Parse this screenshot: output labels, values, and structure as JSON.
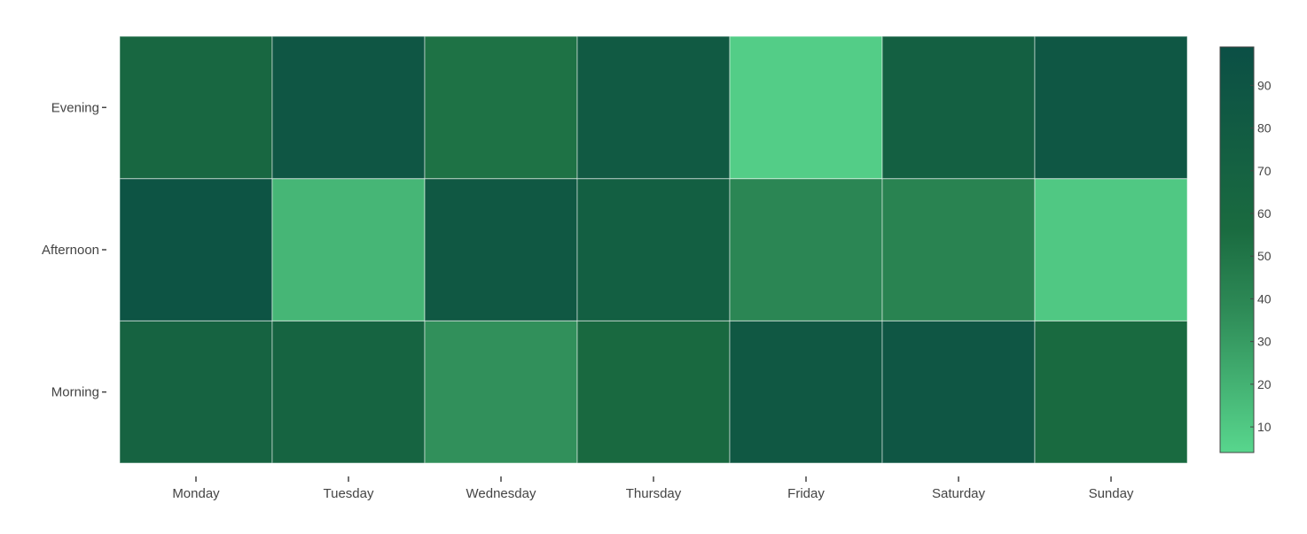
{
  "chart_data": {
    "type": "heatmap",
    "title": "",
    "xlabel": "",
    "ylabel": "",
    "x_categories": [
      "Monday",
      "Tuesday",
      "Wednesday",
      "Thursday",
      "Friday",
      "Saturday",
      "Sunday"
    ],
    "y_categories": [
      "Morning",
      "Afternoon",
      "Evening"
    ],
    "z": [
      [
        68,
        67,
        35,
        60,
        85,
        89,
        58
      ],
      [
        92,
        18,
        86,
        75,
        40,
        42,
        10
      ],
      [
        63,
        88,
        52,
        82,
        8,
        73,
        87
      ]
    ],
    "colorbar": {
      "ticks": [
        10,
        20,
        30,
        40,
        50,
        60,
        70,
        80,
        90
      ],
      "range": [
        4,
        99
      ]
    },
    "colorscale": [
      [
        0,
        "#58d68d"
      ],
      [
        0.35,
        "#2e8b57"
      ],
      [
        0.55,
        "#1a6b40"
      ],
      [
        1,
        "#0b4f45"
      ]
    ],
    "grid": false,
    "legend": "colorbar-right"
  }
}
